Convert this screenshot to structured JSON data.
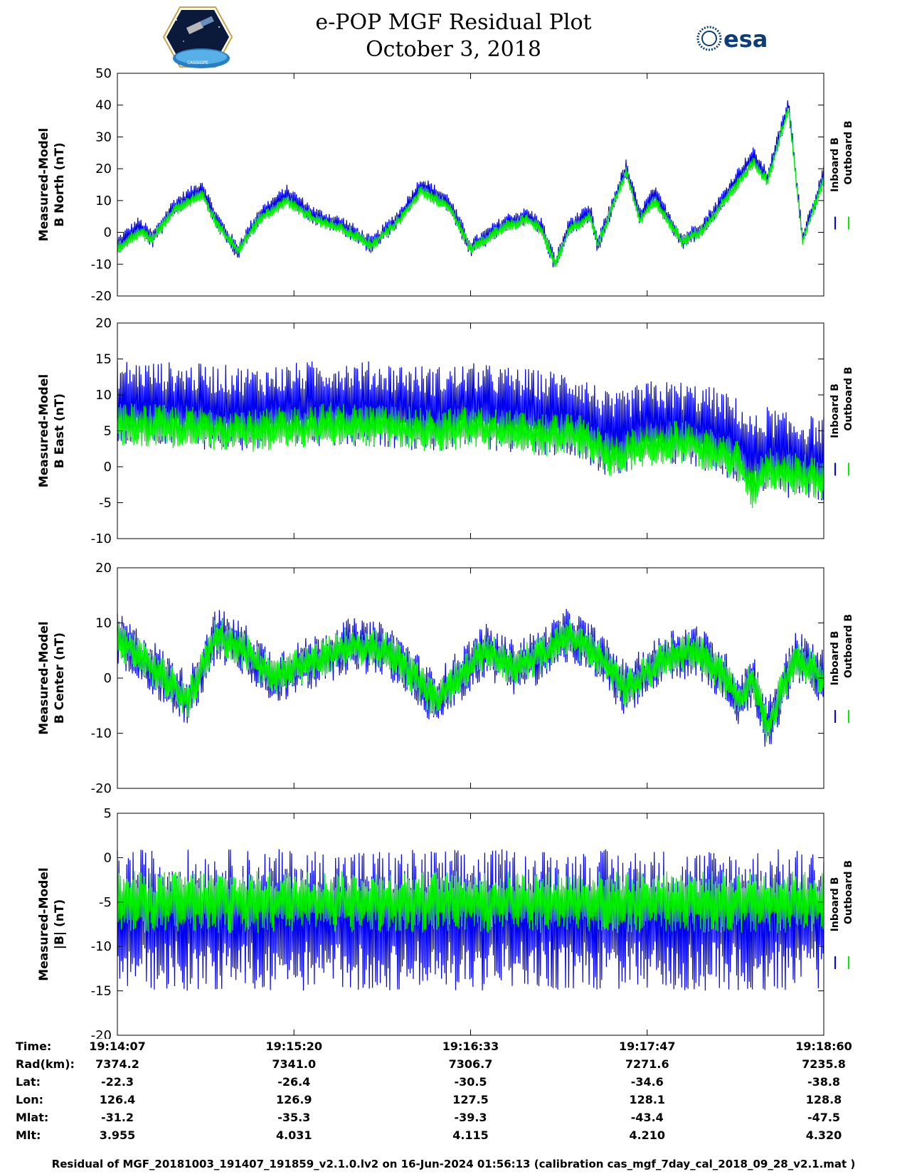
{
  "title_line1": "e-POP MGF Residual Plot",
  "title_line2": "October 3, 2018",
  "logo_left_text": "CASSIOPE",
  "logo_right_text": "esa",
  "colors": {
    "inboard": "#0000ee",
    "outboard": "#00ee00",
    "axes": "#000000",
    "background": "#ffffff"
  },
  "chart_data": [
    {
      "type": "line",
      "ylabel_line1": "Measured-Model",
      "ylabel_line2": "B North (nT)",
      "ylim": [
        -20,
        50
      ],
      "yticks": [
        -20,
        -10,
        0,
        10,
        20,
        30,
        40,
        50
      ],
      "legend": [
        "Inboard B",
        "Outboard B"
      ],
      "legend_placement": "right",
      "grid": false,
      "x_label": "time",
      "x_range": [
        "19:14:07",
        "19:18:60"
      ],
      "trend_keypoints": {
        "x_fraction": [
          0.0,
          0.03,
          0.05,
          0.08,
          0.12,
          0.14,
          0.17,
          0.2,
          0.24,
          0.28,
          0.32,
          0.36,
          0.4,
          0.43,
          0.47,
          0.5,
          0.55,
          0.58,
          0.6,
          0.62,
          0.64,
          0.67,
          0.68,
          0.72,
          0.74,
          0.76,
          0.8,
          0.83,
          0.85,
          0.88,
          0.9,
          0.92,
          0.95,
          0.97,
          1.0
        ],
        "inboard": [
          -4,
          2,
          -2,
          8,
          14,
          4,
          -6,
          5,
          12,
          5,
          2,
          -4,
          5,
          15,
          9,
          -5,
          3,
          5,
          2,
          -10,
          2,
          6,
          -4,
          20,
          5,
          12,
          -3,
          2,
          8,
          18,
          24,
          17,
          40,
          -2,
          18
        ],
        "outboard": [
          -5,
          0,
          -2,
          7,
          12,
          3,
          -6,
          4,
          10,
          4,
          1,
          -4,
          4,
          13,
          8,
          -5,
          2,
          4,
          1,
          -10,
          1,
          5,
          -4,
          19,
          4,
          10,
          -3,
          1,
          7,
          16,
          22,
          16,
          39,
          -3,
          17
        ]
      },
      "noise_amplitude": {
        "inboard": 3,
        "outboard": 2
      }
    },
    {
      "type": "line",
      "ylabel_line1": "Measured-Model",
      "ylabel_line2": "B East (nT)",
      "ylim": [
        -10,
        20
      ],
      "yticks": [
        -10,
        -5,
        0,
        5,
        10,
        15,
        20
      ],
      "legend": [
        "Inboard B",
        "Outboard B"
      ],
      "legend_placement": "right",
      "grid": false,
      "x_label": "time",
      "x_range": [
        "19:14:07",
        "19:18:60"
      ],
      "trend_keypoints": {
        "x_fraction": [
          0.0,
          0.1,
          0.2,
          0.3,
          0.4,
          0.45,
          0.5,
          0.55,
          0.6,
          0.65,
          0.7,
          0.75,
          0.8,
          0.85,
          0.88,
          0.9,
          0.92,
          0.95,
          1.0
        ],
        "inboard": [
          9,
          8.5,
          8,
          9,
          8.5,
          8,
          8.5,
          8,
          7.5,
          7.5,
          4,
          6,
          6,
          5,
          3.5,
          1,
          2.5,
          1.5,
          1
        ],
        "outboard": [
          6,
          5.5,
          5,
          6,
          5.5,
          5,
          5.5,
          5,
          4.5,
          4.5,
          1.5,
          3,
          3.5,
          2,
          0.5,
          -3,
          0,
          -1,
          -1.5
        ]
      },
      "noise_amplitude": {
        "inboard": 6,
        "outboard": 3
      }
    },
    {
      "type": "line",
      "ylabel_line1": "Measured-Model",
      "ylabel_line2": "B Center (nT)",
      "ylim": [
        -20,
        20
      ],
      "yticks": [
        -20,
        -10,
        0,
        10,
        20
      ],
      "legend": [
        "Inboard B",
        "Outboard B"
      ],
      "legend_placement": "right",
      "grid": false,
      "x_label": "time",
      "x_range": [
        "19:14:07",
        "19:18:60"
      ],
      "trend_keypoints": {
        "x_fraction": [
          0.0,
          0.05,
          0.1,
          0.14,
          0.18,
          0.22,
          0.28,
          0.33,
          0.38,
          0.4,
          0.45,
          0.52,
          0.56,
          0.6,
          0.64,
          0.68,
          0.72,
          0.78,
          0.82,
          0.86,
          0.88,
          0.9,
          0.92,
          0.96,
          1.0
        ],
        "inboard": [
          7,
          2,
          -4,
          8,
          5,
          0,
          3,
          6,
          5,
          3,
          -4,
          5,
          2,
          4,
          8,
          4,
          -2,
          4,
          5,
          0,
          -4,
          0,
          -9,
          4,
          0
        ],
        "outboard": [
          7,
          2,
          -4,
          8,
          5,
          0,
          3,
          6,
          5,
          3,
          -4,
          5,
          2,
          4,
          8,
          4,
          -2,
          4,
          5,
          0,
          -4,
          0,
          -9,
          4,
          0
        ]
      },
      "noise_amplitude": {
        "inboard": 5,
        "outboard": 3.5
      }
    },
    {
      "type": "line",
      "ylabel_line1": "Measured-Model",
      "ylabel_line2": "|B| (nT)",
      "ylim": [
        -20,
        5
      ],
      "yticks": [
        -20,
        -15,
        -10,
        -5,
        0,
        5
      ],
      "legend": [
        "Inboard B",
        "Outboard B"
      ],
      "legend_placement": "right",
      "grid": false,
      "x_label": "time",
      "x_range": [
        "19:14:07",
        "19:18:60"
      ],
      "trend_keypoints": {
        "x_fraction": [
          0.0,
          0.5,
          1.0
        ],
        "inboard": [
          -7,
          -7,
          -7
        ],
        "outboard": [
          -5,
          -5,
          -5
        ]
      },
      "noise_amplitude": {
        "inboard": 8,
        "outboard": 3.5
      }
    }
  ],
  "x_axis": {
    "ticks": [
      "19:14:07",
      "19:15:20",
      "19:16:33",
      "19:17:47",
      "19:18:60"
    ],
    "tick_fractions": [
      0.0,
      0.25,
      0.5,
      0.75,
      1.0
    ]
  },
  "ephemeris": [
    {
      "label": "Time:",
      "values": [
        "19:14:07",
        "19:15:20",
        "19:16:33",
        "19:17:47",
        "19:18:60"
      ]
    },
    {
      "label": "Rad(km):",
      "values": [
        "7374.2",
        "7341.0",
        "7306.7",
        "7271.6",
        "7235.8"
      ]
    },
    {
      "label": "Lat:",
      "values": [
        "-22.3",
        "-26.4",
        "-30.5",
        "-34.6",
        "-38.8"
      ]
    },
    {
      "label": "Lon:",
      "values": [
        "126.4",
        "126.9",
        "127.5",
        "128.1",
        "128.8"
      ]
    },
    {
      "label": "Mlat:",
      "values": [
        "-31.2",
        "-35.3",
        "-39.3",
        "-43.4",
        "-47.5"
      ]
    },
    {
      "label": "Mlt:",
      "values": [
        "3.955",
        "4.031",
        "4.115",
        "4.210",
        "4.320"
      ]
    }
  ],
  "footer": "Residual of MGF_20181003_191407_191859_v2.1.0.lv2 on 16-Jun-2024 01:56:13 (calibration cas_mgf_7day_cal_2018_09_28_v2.1.mat )"
}
